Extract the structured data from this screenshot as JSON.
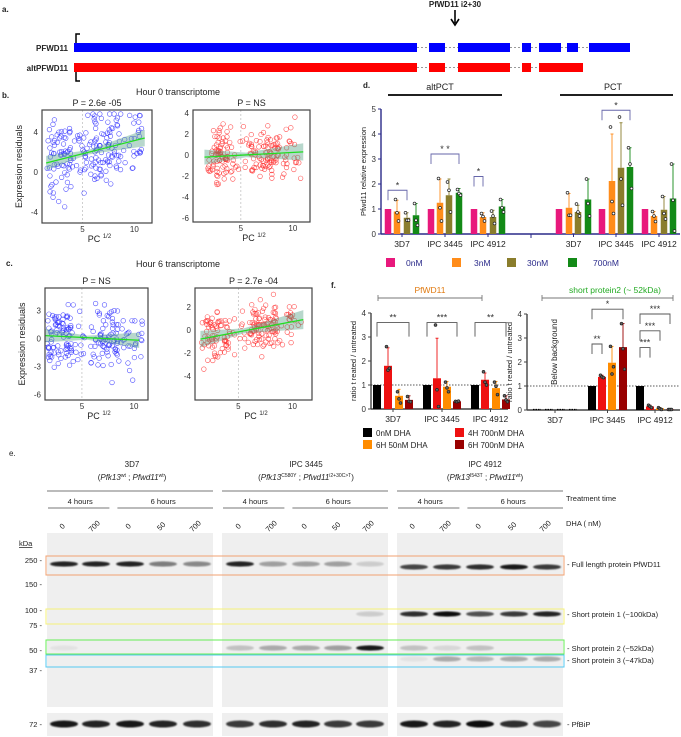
{
  "panel_labels": {
    "a": "a.",
    "b": "b.",
    "c": "c.",
    "d": "d.",
    "e": "e.",
    "f": "f."
  },
  "gene_diagram": {
    "variant_label": "PfWD11  i2+30",
    "tracks": [
      {
        "name": "PFWD11",
        "color": "#0000ff"
      },
      {
        "name": "altPFWD11",
        "color": "#ff0000"
      }
    ]
  },
  "panel_b_title": "Hour 0 transcriptome",
  "panel_c_title": "Hour 6 transcriptome",
  "chart_data": [
    {
      "id": "b1",
      "type": "scatter",
      "title": "P = 2.6e -05",
      "xlabel": "PC",
      "xlabel_sup": "1/2",
      "ylabel": "Expression residuals",
      "xlim": [
        1.1,
        11.7
      ],
      "ylim": [
        -5.1,
        6.2
      ],
      "xticks": [
        "5",
        "10"
      ],
      "xtick_values": [
        5,
        10
      ],
      "yticks": [
        "4",
        "0",
        "-4"
      ],
      "ytick_values": [
        4,
        0,
        -4
      ],
      "color": "#3030ff",
      "n_points": 200,
      "fit": [
        [
          1.5,
          0.9
        ],
        [
          11,
          3.4
        ]
      ],
      "spread": 2.2,
      "vline": 5
    },
    {
      "id": "b2",
      "type": "scatter",
      "title": "P = NS",
      "xlabel": "PC",
      "xlabel_sup": "1/2",
      "ylabel": "",
      "xlim": [
        0.4,
        11.65
      ],
      "ylim": [
        -6.4,
        4.3
      ],
      "xticks": [
        "5",
        "10"
      ],
      "xtick_values": [
        5,
        10
      ],
      "yticks": [
        "4",
        "2",
        "0",
        "-2",
        "-4",
        "-6"
      ],
      "ytick_values": [
        4,
        2,
        0,
        -2,
        -4,
        -6
      ],
      "color": "#ff3030",
      "n_points": 200,
      "fit": [
        [
          1.5,
          -0.2
        ],
        [
          11,
          0.3
        ]
      ],
      "spread": 1.6,
      "vline": 5
    },
    {
      "id": "c1",
      "type": "scatter",
      "title": "P = NS",
      "xlabel": "PC",
      "xlabel_sup": "1/2",
      "ylabel": "Expression residuals",
      "xlim": [
        1.45,
        11.35
      ],
      "ylim": [
        -6.6,
        5.4
      ],
      "xticks": [
        "5",
        "10"
      ],
      "xtick_values": [
        5,
        10
      ],
      "yticks": [
        "3",
        "0",
        "-3",
        "-6"
      ],
      "ytick_values": [
        3,
        0,
        -3,
        -6
      ],
      "color": "#3030ff",
      "n_points": 200,
      "fit": [
        [
          1.5,
          0.3
        ],
        [
          10.5,
          -0.2
        ]
      ],
      "spread": 2.3,
      "vline": 5
    },
    {
      "id": "c2",
      "type": "scatter",
      "title": "P = 2.7e -04",
      "xlabel": "PC",
      "xlabel_sup": "1/2",
      "ylabel": "",
      "xlim": [
        1.0,
        11.8
      ],
      "ylim": [
        -6.1,
        3.65
      ],
      "xticks": [
        "5",
        "10"
      ],
      "xtick_values": [
        5,
        10
      ],
      "yticks": [
        "2",
        "0",
        "-2",
        "-4"
      ],
      "ytick_values": [
        2,
        0,
        -2,
        -4
      ],
      "color": "#ff3030",
      "n_points": 200,
      "fit": [
        [
          1.5,
          -0.8
        ],
        [
          11,
          0.9
        ]
      ],
      "spread": 1.4,
      "vline": 5
    },
    {
      "id": "d",
      "type": "bar",
      "ylabel": "Pfwd11 relative expression",
      "ylim": [
        0,
        5
      ],
      "yticks": [
        "0",
        "1",
        "2",
        "3",
        "4",
        "5"
      ],
      "sections": [
        "altPCT",
        "PCT"
      ],
      "categories": [
        "3D7",
        "IPC 3445",
        "IPC 4912",
        "3D7",
        "IPC 3445",
        "IPC 4912"
      ],
      "legend": [
        {
          "label": "0nM",
          "color": "#e8187c"
        },
        {
          "label": "3nM",
          "color": "#ff8c1a"
        },
        {
          "label": "30nM",
          "color": "#8a7d2c"
        },
        {
          "label": "700nM",
          "color": "#138a17"
        }
      ],
      "values": [
        [
          1,
          0.9,
          0.65,
          0.75
        ],
        [
          1,
          1.25,
          1.55,
          1.65
        ],
        [
          1,
          0.68,
          0.68,
          1.1
        ],
        [
          1,
          1.05,
          0.88,
          1.38
        ],
        [
          1,
          2.12,
          2.65,
          2.68
        ],
        [
          1,
          0.72,
          0.97,
          1.42
        ]
      ],
      "error_top": [
        [
          1,
          1.35,
          0.85,
          1.22
        ],
        [
          1,
          2.2,
          2.2,
          1.82
        ],
        [
          1,
          0.85,
          0.95,
          1.38
        ],
        [
          1,
          1.62,
          1.15,
          2.2
        ],
        [
          1,
          4.0,
          4.45,
          3.45
        ],
        [
          1,
          0.9,
          1.5,
          2.8
        ]
      ],
      "points": [
        [
          [
            1,
            1,
            1
          ],
          [
            1.38,
            0.85,
            0.52
          ],
          [
            0.85,
            0.55,
            0.55
          ],
          [
            1.22,
            0.55,
            0.35
          ]
        ],
        [
          [
            1,
            1,
            1
          ],
          [
            2.22,
            1.05,
            0.52
          ],
          [
            2.08,
            1.75,
            0.88
          ],
          [
            1.78,
            1.62,
            1.55
          ]
        ],
        [
          [
            1,
            1,
            1
          ],
          [
            0.82,
            0.7,
            0.52
          ],
          [
            0.92,
            0.72,
            0.42
          ],
          [
            1.38,
            1.05,
            0.88
          ]
        ],
        [
          [
            1,
            1,
            1
          ],
          [
            1.65,
            0.75,
            0.75
          ],
          [
            1.2,
            0.88,
            0.72
          ],
          [
            2.2,
            1.22,
            0.72
          ]
        ],
        [
          [
            1,
            1,
            1
          ],
          [
            4.28,
            1.3,
            0.82
          ],
          [
            4.68,
            2.2,
            1.15
          ],
          [
            3.45,
            2.8,
            1.82
          ]
        ],
        [
          [
            1,
            1,
            1
          ],
          [
            0.9,
            0.72,
            0.5
          ],
          [
            1.5,
            0.82,
            0.6
          ],
          [
            2.8,
            1.35,
            0.12
          ]
        ]
      ],
      "significance": [
        {
          "group": 0,
          "from": 0,
          "to": 2,
          "y": 1.75,
          "label": "*"
        },
        {
          "group": 1,
          "from": 0,
          "to": 3,
          "y": 3.2,
          "label": "* *"
        },
        {
          "group": 2,
          "from": 0,
          "to": 1,
          "y": 2.3,
          "label": "*"
        },
        {
          "group": 4,
          "from": 0,
          "to": 3,
          "y": 4.95,
          "label": "*"
        }
      ]
    },
    {
      "id": "f1",
      "type": "bar",
      "title": "PfWD11",
      "ylabel": "ratio t reated / untreated",
      "ylim": [
        0,
        4
      ],
      "yticks": [
        "0",
        "1",
        "2",
        "3",
        "4"
      ],
      "reference_line": 1,
      "categories": [
        "3D7",
        "IPC 3445",
        "IPC 4912"
      ],
      "legend": [
        {
          "label": "0nM DHA",
          "color": "#000000"
        },
        {
          "label": "4H 700nM DHA",
          "color": "#ee1111"
        },
        {
          "label": "6H 50nM DHA",
          "color": "#ff8c00"
        },
        {
          "label": "6H 700nM DHA",
          "color": "#990000"
        }
      ],
      "values": [
        [
          1,
          1.8,
          0.55,
          0.38
        ],
        [
          1,
          1.28,
          0.93,
          0.32
        ],
        [
          1,
          1.22,
          0.87,
          0.4
        ]
      ],
      "error_top": [
        [
          1,
          2.55,
          0.82,
          0.55
        ],
        [
          1,
          2.95,
          1.15,
          0.33
        ],
        [
          1,
          1.5,
          1.15,
          0.55
        ]
      ],
      "points": [
        [
          [
            1,
            1,
            1
          ],
          [
            2.6,
            1.62,
            1.7
          ],
          [
            0.72,
            0.42,
            0.25
          ],
          [
            0.52,
            0.32,
            0.3
          ]
        ],
        [
          [
            1,
            1,
            1
          ],
          [
            3.5,
            0.8,
            0.1
          ],
          [
            1.12,
            0.88,
            0.72
          ],
          [
            0.32,
            0.3,
            0.33
          ]
        ],
        [
          [
            1,
            1,
            1
          ],
          [
            1.55,
            1.12,
            1.0
          ],
          [
            1.12,
            0.95,
            0.6
          ],
          [
            0.55,
            0.38,
            0.3
          ]
        ]
      ],
      "significance": [
        {
          "group": 0,
          "from": 0,
          "to": 3,
          "y": 3.6,
          "label": "**"
        },
        {
          "group": 1,
          "from": 0,
          "to": 3,
          "y": 3.6,
          "label": "***"
        },
        {
          "group": 2,
          "from": 0,
          "to": 3,
          "y": 3.6,
          "label": "**"
        }
      ]
    },
    {
      "id": "f2",
      "type": "bar",
      "title": "short protein2 (~ 52kDa)",
      "ylabel": "ratio t reated / untreated",
      "ylim": [
        0,
        4
      ],
      "yticks": [
        "0",
        "1",
        "2",
        "3",
        "4"
      ],
      "reference_line": 1,
      "categories": [
        "3D7",
        "IPC 3445",
        "IPC 4912"
      ],
      "annotation": "Below background",
      "values": [
        [
          0,
          0,
          0,
          0
        ],
        [
          1,
          1.38,
          1.97,
          2.62
        ],
        [
          1,
          0.15,
          0.07,
          0.02
        ]
      ],
      "error_top": [
        [
          0,
          0,
          0,
          0
        ],
        [
          1,
          1.45,
          2.65,
          3.6
        ],
        [
          1,
          0.2,
          0.1,
          0.02
        ]
      ],
      "points": [
        [
          [],
          [],
          [],
          []
        ],
        [
          [
            1,
            1,
            1
          ],
          [
            1.45,
            1.38,
            1.35
          ],
          [
            2.65,
            1.5,
            1.8
          ],
          [
            3.6,
            2.55,
            1.7
          ]
        ],
        [
          [
            1,
            1,
            1
          ],
          [
            0.2,
            0.15,
            0.1
          ],
          [
            0.1,
            0.05,
            0.02
          ],
          [
            0.02,
            0.02,
            0.02
          ]
        ]
      ],
      "significance": [
        {
          "group": 1,
          "from": 0,
          "to": 3,
          "y": 4.2,
          "label": "*"
        },
        {
          "group": 1,
          "from": 0,
          "to": 1,
          "y": 2.75,
          "label": "**"
        },
        {
          "group": 2,
          "from": 0,
          "to": 3,
          "y": 4.0,
          "label": "***"
        },
        {
          "group": 2,
          "from": 0,
          "to": 2,
          "y": 3.3,
          "label": "***"
        },
        {
          "group": 2,
          "from": 0,
          "to": 1,
          "y": 2.6,
          "label": "***"
        }
      ]
    },
    {
      "id": "e",
      "type": "blot",
      "strains": [
        {
          "name": "3D7",
          "g1": "Pfk13",
          "s1": "wt",
          "g2": "Pfwd11",
          "s2": "wt"
        },
        {
          "name": "IPC 3445",
          "g1": "Pfk13",
          "s1": "C580Y",
          "g2": "Pfwd11",
          "s2": "i2+30C>T"
        },
        {
          "name": "IPC 4912",
          "g1": "Pfk13",
          "s1": "I543T",
          "g2": "Pfwd11",
          "s2": "wt"
        }
      ],
      "time_groups": [
        "4 hours",
        "6 hours"
      ],
      "lanes": [
        "0",
        "700",
        "0",
        "50",
        "700"
      ],
      "treatment_label": "Treatment time",
      "dha_label": "DHA ( nM)",
      "kda_label": "kDa",
      "markers": [
        "250 -",
        "150 -",
        "100 -",
        "75 -",
        "50 -",
        "37 -"
      ],
      "loading_marker": "72 -",
      "bands": [
        {
          "label": "- Full length protein PfWD11",
          "intensity": [
            [
              0.9,
              0.9,
              0.9,
              0.5,
              0.45
            ],
            [
              0.9,
              0.35,
              0.35,
              0.35,
              0.15
            ],
            [
              0.75,
              0.8,
              0.85,
              0.95,
              0.8
            ]
          ]
        },
        {
          "label": "- Short protein 1 (~100kDa)",
          "intensity": [
            [
              0,
              0,
              0,
              0,
              0
            ],
            [
              0,
              0,
              0,
              0,
              0.15
            ],
            [
              0.85,
              1,
              0.7,
              0.8,
              0.9
            ]
          ]
        },
        {
          "label": "- Short protein 2 (~52kDa)",
          "intensity": [
            [
              0.05,
              0,
              0,
              0,
              0
            ],
            [
              0.2,
              0.3,
              0.3,
              0.35,
              0.95
            ],
            [
              0.2,
              0.1,
              0.2,
              0,
              0
            ]
          ]
        },
        {
          "label": "- Short protein 3 (~47kDa)",
          "intensity": [
            [
              0,
              0,
              0,
              0,
              0
            ],
            [
              0,
              0,
              0,
              0,
              0
            ],
            [
              0.05,
              0.3,
              0.25,
              0.3,
              0.3
            ]
          ]
        },
        {
          "label": "- PfBiP",
          "intensity": [
            [
              0.95,
              0.9,
              0.95,
              0.9,
              0.85
            ],
            [
              0.8,
              0.85,
              0.9,
              0.8,
              0.8
            ],
            [
              0.95,
              0.9,
              1,
              0.85,
              0.75
            ]
          ]
        }
      ],
      "box_colors": [
        "#f0a070",
        "#f5f07a",
        "#66ee55",
        "#55c8f0"
      ]
    }
  ]
}
